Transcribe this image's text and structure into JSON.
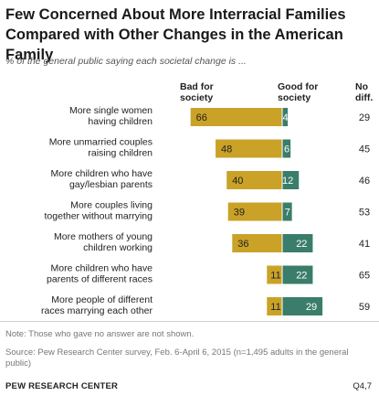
{
  "title": "Few Concerned About More Interracial Families Compared with Other Changes in the American Family",
  "subtitle": "% of the general public saying each societal change is ...",
  "headers": {
    "bad": "Bad for society",
    "good": "Good for society",
    "nodiff": "No diff."
  },
  "note": "Note: Those who gave no answer are not shown.",
  "source": "Source: Pew Research Center survey, Feb. 6-April 6, 2015 (n=1,495 adults in the general public)",
  "footer": {
    "org": "PEW RESEARCH CENTER",
    "code": "Q4,7"
  },
  "colors": {
    "bad": "#c9a227",
    "good": "#3a7d6a",
    "divider": "#ffffff"
  },
  "chart_data": {
    "type": "bar",
    "orientation": "horizontal-diverging",
    "categories": [
      "More single women having children",
      "More unmarried couples raising children",
      "More children who have gay/lesbian parents",
      "More couples living together without marrying",
      "More mothers of young children working",
      "More children who have parents of different races",
      "More people of different races marrying each other"
    ],
    "category_lines": [
      [
        "More single women",
        "having children"
      ],
      [
        "More unmarried couples",
        "raising children"
      ],
      [
        "More children who have",
        "gay/lesbian parents"
      ],
      [
        "More couples living",
        "together without marrying"
      ],
      [
        "More mothers of young",
        "children working"
      ],
      [
        "More children who have",
        "parents of different races"
      ],
      [
        "More people of different",
        "races marrying each other"
      ]
    ],
    "series": [
      {
        "name": "Bad for society",
        "values": [
          66,
          48,
          40,
          39,
          36,
          11,
          11
        ]
      },
      {
        "name": "Good for society",
        "values": [
          4,
          6,
          12,
          7,
          22,
          22,
          29
        ]
      },
      {
        "name": "No diff.",
        "values": [
          29,
          45,
          46,
          53,
          41,
          65,
          59
        ]
      }
    ]
  }
}
